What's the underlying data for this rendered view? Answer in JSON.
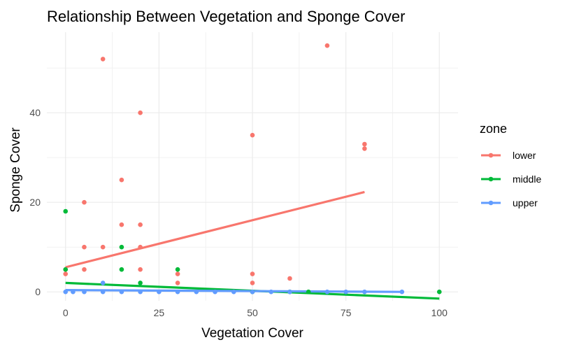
{
  "chart_data": {
    "type": "scatter",
    "title": "Relationship Between Vegetation and Sponge Cover",
    "xlabel": "Vegetation Cover",
    "ylabel": "Sponge Cover",
    "xlim": [
      -5,
      105
    ],
    "ylim": [
      -2,
      58
    ],
    "x_ticks": [
      0,
      25,
      50,
      75,
      100
    ],
    "y_ticks": [
      0,
      20,
      40
    ],
    "grid": true,
    "legend": {
      "title": "zone",
      "position": "right"
    },
    "series": [
      {
        "name": "lower",
        "color": "#F8766D",
        "points": [
          [
            0,
            4
          ],
          [
            0,
            5
          ],
          [
            5,
            5
          ],
          [
            5,
            10
          ],
          [
            5,
            20
          ],
          [
            10,
            10
          ],
          [
            10,
            52
          ],
          [
            15,
            15
          ],
          [
            15,
            25
          ],
          [
            20,
            5
          ],
          [
            20,
            10
          ],
          [
            20,
            15
          ],
          [
            20,
            40
          ],
          [
            30,
            2
          ],
          [
            30,
            4
          ],
          [
            50,
            2
          ],
          [
            50,
            4
          ],
          [
            50,
            35
          ],
          [
            60,
            3
          ],
          [
            70,
            55
          ],
          [
            80,
            32
          ],
          [
            80,
            33
          ]
        ],
        "trend": [
          [
            0,
            5.5
          ],
          [
            80,
            22.3
          ]
        ]
      },
      {
        "name": "middle",
        "color": "#00BA38",
        "points": [
          [
            0,
            5
          ],
          [
            0,
            18
          ],
          [
            15,
            5
          ],
          [
            15,
            10
          ],
          [
            20,
            2
          ],
          [
            30,
            5
          ],
          [
            50,
            0
          ],
          [
            60,
            0
          ],
          [
            65,
            0
          ],
          [
            100,
            0
          ]
        ],
        "trend": [
          [
            0,
            2.0
          ],
          [
            100,
            -1.5
          ]
        ]
      },
      {
        "name": "upper",
        "color": "#619CFF",
        "points": [
          [
            0,
            0
          ],
          [
            2,
            0
          ],
          [
            5,
            0
          ],
          [
            10,
            0
          ],
          [
            10,
            2
          ],
          [
            15,
            0
          ],
          [
            20,
            0
          ],
          [
            25,
            0
          ],
          [
            30,
            0
          ],
          [
            35,
            0
          ],
          [
            40,
            0
          ],
          [
            45,
            0
          ],
          [
            50,
            0
          ],
          [
            55,
            0
          ],
          [
            60,
            0
          ],
          [
            70,
            0
          ],
          [
            75,
            0
          ],
          [
            80,
            0
          ],
          [
            90,
            0
          ]
        ],
        "trend": [
          [
            0,
            0.4
          ],
          [
            90,
            0.0
          ]
        ]
      }
    ]
  }
}
